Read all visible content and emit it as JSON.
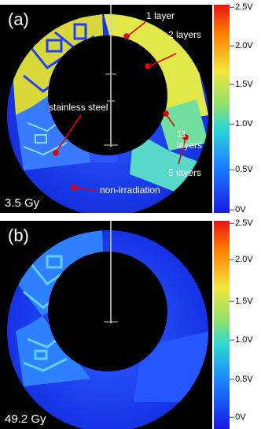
{
  "panel_a": {
    "label": "(a)",
    "dose": "3.5 Gy",
    "annotations": {
      "layer1": "1 layer",
      "layer2": "2 layers",
      "stainless": "stainless steel",
      "layer11_line1": "11",
      "layer11_line2": "layers",
      "layer5": "5 layers",
      "nonirr": "non-irradiation"
    }
  },
  "panel_b": {
    "label": "(b)",
    "dose": "49.2 Gy"
  },
  "colorbar_ticks": [
    "2.5V",
    "2.0V",
    "1.5V",
    "1.0V",
    "0.5V",
    "0V"
  ],
  "colors": {
    "background": "#000000",
    "base_blue": "#1f3dff",
    "annotation_dot": "#e00000",
    "high": "#e81414",
    "low": "#1919e6"
  }
}
